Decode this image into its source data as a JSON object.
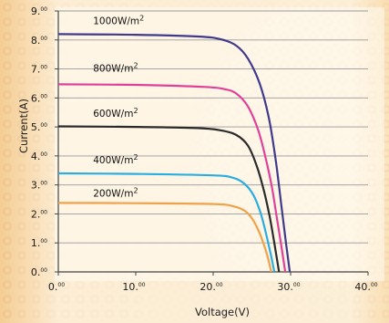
{
  "chart_data": {
    "type": "line",
    "xlabel": "Voltage(V)",
    "ylabel": "Current(A)",
    "xlim": [
      0,
      40
    ],
    "ylim": [
      0,
      9
    ],
    "x_ticks": [
      {
        "value": 0,
        "main": "0.",
        "frac": "00"
      },
      {
        "value": 10,
        "main": "10.",
        "frac": "00"
      },
      {
        "value": 20,
        "main": "20.",
        "frac": "00"
      },
      {
        "value": 30,
        "main": "30.",
        "frac": "00"
      },
      {
        "value": 40,
        "main": "40.",
        "frac": "00"
      }
    ],
    "y_ticks": [
      {
        "value": 0,
        "main": "0.",
        "frac": "00"
      },
      {
        "value": 1,
        "main": "1.",
        "frac": "00"
      },
      {
        "value": 2,
        "main": "2.",
        "frac": "00"
      },
      {
        "value": 3,
        "main": "3.",
        "frac": "00"
      },
      {
        "value": 4,
        "main": "4.",
        "frac": "00"
      },
      {
        "value": 5,
        "main": "5.",
        "frac": "00"
      },
      {
        "value": 6,
        "main": "6.",
        "frac": "00"
      },
      {
        "value": 7,
        "main": "7.",
        "frac": "00"
      },
      {
        "value": 8,
        "main": "8.",
        "frac": "00"
      },
      {
        "value": 9,
        "main": "9.",
        "frac": "00"
      }
    ],
    "grid": {
      "horizontal": true,
      "vertical": false
    },
    "series": [
      {
        "name": "1000W/m2",
        "label_text": "1000W/m",
        "label_sup": "2",
        "color": "#3f3a8c",
        "label_at": [
          4.5,
          8.55
        ],
        "points": [
          [
            0,
            8.2
          ],
          [
            10,
            8.18
          ],
          [
            18,
            8.12
          ],
          [
            21,
            8.02
          ],
          [
            23,
            7.8
          ],
          [
            24.5,
            7.35
          ],
          [
            26,
            6.5
          ],
          [
            27.2,
            5.3
          ],
          [
            28.1,
            3.8
          ],
          [
            28.8,
            2.3
          ],
          [
            29.4,
            1.0
          ],
          [
            29.9,
            0
          ]
        ]
      },
      {
        "name": "800W/m2",
        "label_text": "800W/m",
        "label_sup": "2",
        "color": "#e0409a",
        "label_at": [
          4.5,
          6.9
        ],
        "points": [
          [
            0,
            6.47
          ],
          [
            10,
            6.45
          ],
          [
            19,
            6.38
          ],
          [
            21.5,
            6.3
          ],
          [
            23,
            6.15
          ],
          [
            24.5,
            5.7
          ],
          [
            25.8,
            4.9
          ],
          [
            26.8,
            3.9
          ],
          [
            27.6,
            2.9
          ],
          [
            28.2,
            1.9
          ],
          [
            28.8,
            0.9
          ],
          [
            29.3,
            0
          ]
        ]
      },
      {
        "name": "600W/m2",
        "label_text": "600W/m",
        "label_sup": "2",
        "color": "#2a2a2a",
        "label_at": [
          4.5,
          5.35
        ],
        "points": [
          [
            0,
            5.02
          ],
          [
            10,
            5.0
          ],
          [
            18,
            4.96
          ],
          [
            21,
            4.88
          ],
          [
            23,
            4.72
          ],
          [
            24.5,
            4.35
          ],
          [
            25.7,
            3.6
          ],
          [
            26.6,
            2.75
          ],
          [
            27.3,
            1.9
          ],
          [
            27.9,
            1.0
          ],
          [
            28.5,
            0
          ]
        ]
      },
      {
        "name": "400W/m2",
        "label_text": "400W/m",
        "label_sup": "2",
        "color": "#2aaee0",
        "label_at": [
          4.5,
          3.75
        ],
        "points": [
          [
            0,
            3.4
          ],
          [
            10,
            3.38
          ],
          [
            20,
            3.33
          ],
          [
            22.5,
            3.25
          ],
          [
            24,
            3.05
          ],
          [
            25.2,
            2.65
          ],
          [
            26.1,
            2.05
          ],
          [
            26.8,
            1.35
          ],
          [
            27.4,
            0.65
          ],
          [
            27.9,
            0
          ]
        ]
      },
      {
        "name": "200W/m2",
        "label_text": "200W/m",
        "label_sup": "2",
        "color": "#f0a24a",
        "label_at": [
          4.5,
          2.6
        ],
        "points": [
          [
            0,
            2.38
          ],
          [
            10,
            2.37
          ],
          [
            20,
            2.34
          ],
          [
            22.5,
            2.27
          ],
          [
            24,
            2.12
          ],
          [
            25,
            1.85
          ],
          [
            25.9,
            1.4
          ],
          [
            26.6,
            0.9
          ],
          [
            27.1,
            0.45
          ],
          [
            27.5,
            0
          ]
        ]
      }
    ]
  }
}
